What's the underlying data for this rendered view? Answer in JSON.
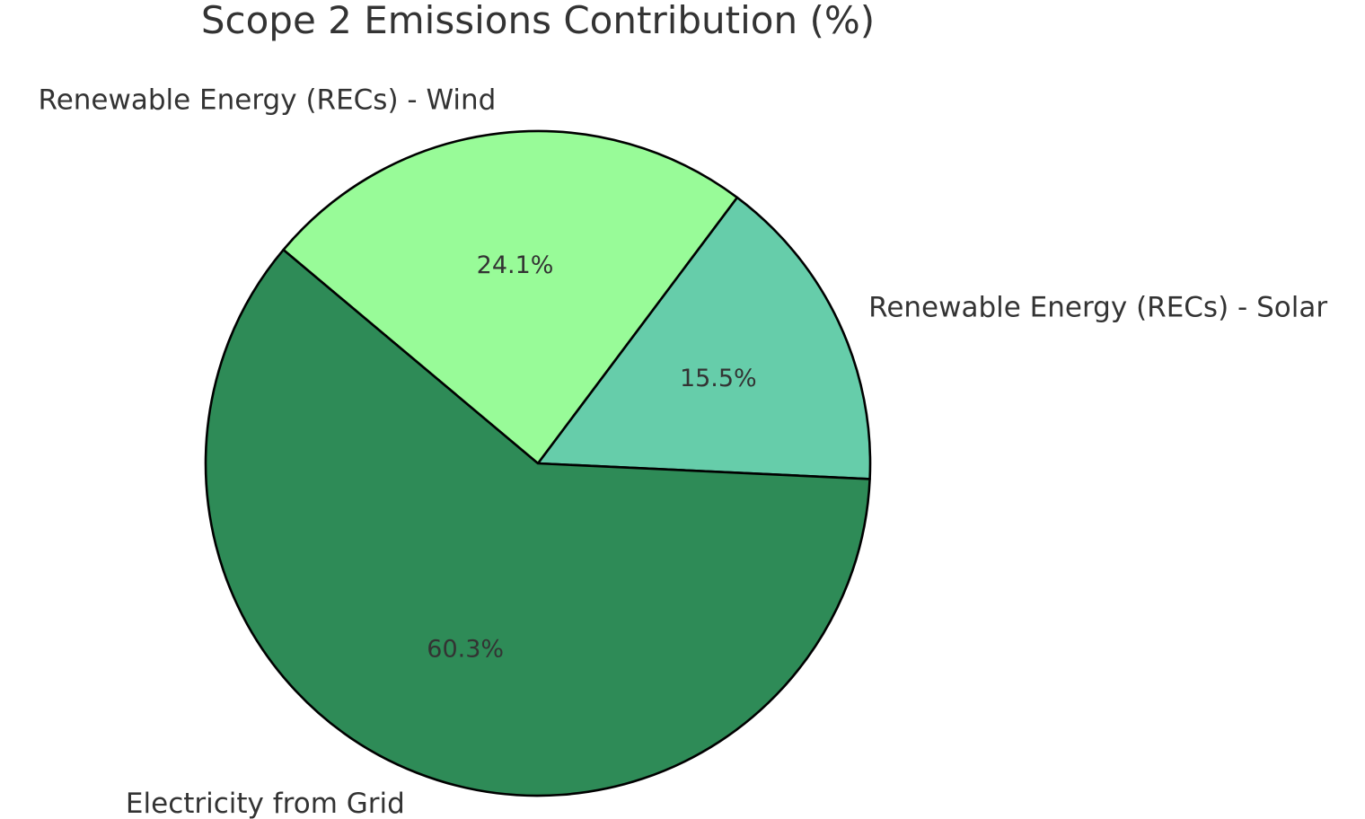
{
  "chart_data": {
    "type": "pie",
    "title": "Scope 2 Emissions Contribution (%)",
    "categories": [
      "Renewable Energy (RECs) - Solar",
      "Renewable Energy (RECs) - Wind",
      "Electricity from Grid"
    ],
    "values": [
      15.5,
      24.1,
      60.3
    ],
    "value_labels": [
      "15.5%",
      "24.1%",
      "60.3%"
    ],
    "colors": [
      "#66cdaa",
      "#98fb98",
      "#2e8b57"
    ],
    "start_angle_deg": -2.7,
    "direction": "counterclockwise",
    "legend": "none"
  }
}
